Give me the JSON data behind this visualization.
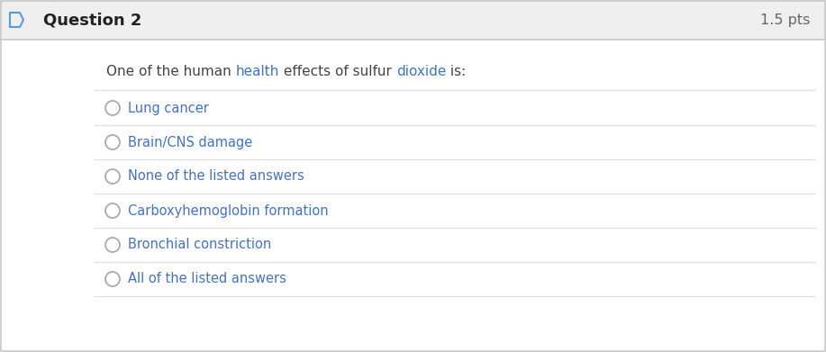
{
  "header_bg": "#efefef",
  "body_bg": "#ffffff",
  "border_color": "#c8c8c8",
  "question_number": "Question 2",
  "pts": "1.5 pts",
  "header_text_color": "#222222",
  "pts_color": "#666666",
  "question_text_parts": [
    {
      "text": "One of the human ",
      "color": "#444444"
    },
    {
      "text": "health",
      "color": "#4472c4"
    },
    {
      "text": " effects of sulfur ",
      "color": "#444444"
    },
    {
      "text": "dioxide",
      "color": "#4472c4"
    },
    {
      "text": " is:",
      "color": "#444444"
    }
  ],
  "options": [
    {
      "text": "Lung cancer",
      "color": "#4472c4"
    },
    {
      "text": "Brain/CNS damage",
      "color": "#4472c4"
    },
    {
      "text": "None of the listed answers",
      "color": "#4472c4"
    },
    {
      "text": "Carboxyhemoglobin formation",
      "color": "#4472c4"
    },
    {
      "text": "Bronchial constriction",
      "color": "#4472c4"
    },
    {
      "text": "All of the listed answers",
      "color": "#4472c4"
    }
  ],
  "divider_color": "#e0e0e0",
  "circle_edge_color": "#aaaaaa",
  "left_icon_color": "#5b9bd5",
  "figsize": [
    9.17,
    3.91
  ],
  "dpi": 100
}
